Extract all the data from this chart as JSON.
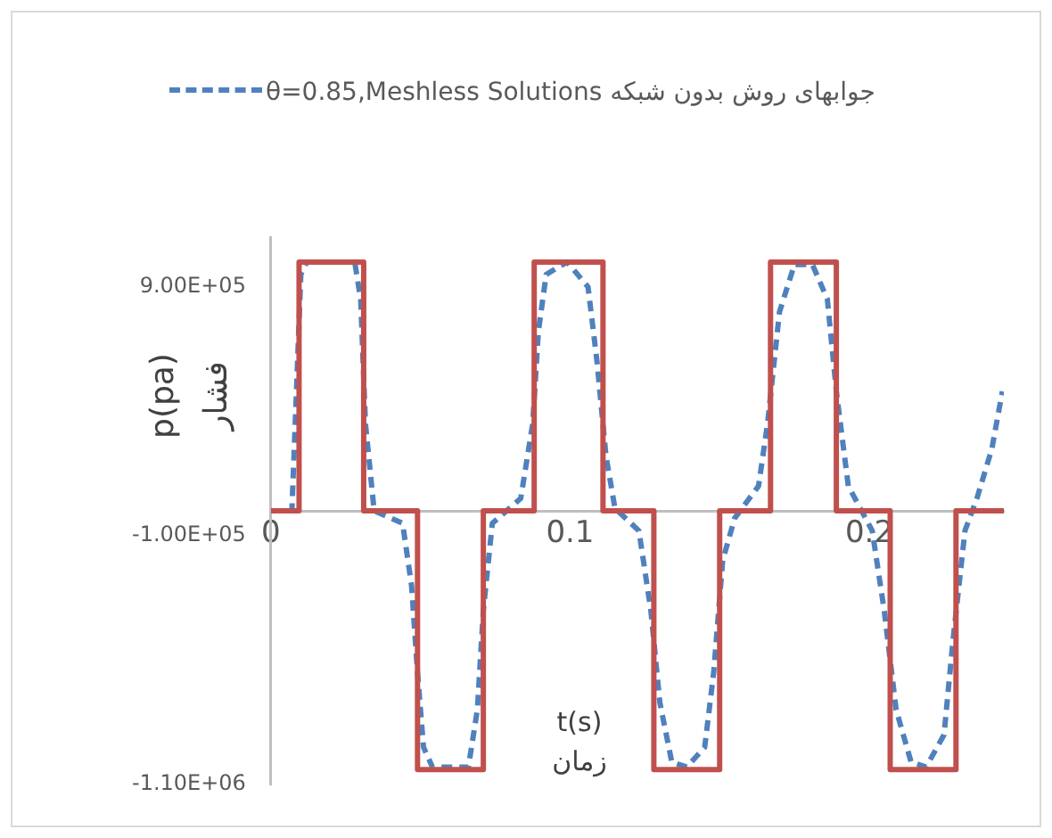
{
  "chart_data": {
    "type": "line",
    "xlabel": "t(s)\nزمان",
    "ylabel": "p(pa)\nفشار",
    "legend": "top",
    "grid": false,
    "marker": "none",
    "xlim": [
      0,
      0.245
    ],
    "xticks": [
      0,
      0.1,
      0.2
    ],
    "ylim": [
      -1100000,
      1100000
    ],
    "yticks": [
      {
        "value": 900000,
        "label": "9.00E+05"
      },
      {
        "value": -100000,
        "label": "-1.00E+05"
      },
      {
        "value": -1100000,
        "label": "-1.10E+06"
      }
    ],
    "series": [
      {
        "type": "step",
        "color": "#c0504d",
        "x": [
          0,
          0.0094,
          0.031,
          0.049,
          0.071,
          0.088,
          0.111,
          0.128,
          0.15,
          0.167,
          0.189,
          0.207,
          0.229,
          0.245
        ],
        "values": [
          0,
          1000000,
          0,
          -1040000,
          0,
          1000000,
          0,
          -1040000,
          0,
          1000000,
          0,
          -1040000,
          0,
          0
        ]
      },
      {
        "type": "line",
        "name": "θ=0.85,Meshless Solutions جوابهای روش بدون شبکه",
        "color": "#4f81bd",
        "line_style": "dashed",
        "x": [
          0,
          0.007,
          0.01,
          0.012,
          0.028,
          0.03,
          0.0316,
          0.0345,
          0.044,
          0.047,
          0.049,
          0.051,
          0.054,
          0.066,
          0.069,
          0.071,
          0.074,
          0.0835,
          0.0875,
          0.0894,
          0.092,
          0.099,
          0.106,
          0.109,
          0.112,
          0.115,
          0.123,
          0.127,
          0.13,
          0.134,
          0.139,
          0.145,
          0.148,
          0.151,
          0.155,
          0.163,
          0.166,
          0.17,
          0.175,
          0.181,
          0.186,
          0.189,
          0.193,
          0.201,
          0.205,
          0.209,
          0.214,
          0.219,
          0.225,
          0.228,
          0.232,
          0.236,
          0.241,
          0.2445
        ],
        "values": [
          0,
          0,
          950000,
          1000000,
          1000000,
          850000,
          350000,
          0,
          -50000,
          -300000,
          -650000,
          -950000,
          -1030000,
          -1030000,
          -800000,
          -400000,
          -50000,
          50000,
          350000,
          720000,
          950000,
          1000000,
          900000,
          600000,
          220000,
          10000,
          -80000,
          -400000,
          -770000,
          -1010000,
          -1030000,
          -950000,
          -650000,
          -200000,
          -30000,
          100000,
          350000,
          800000,
          990000,
          990000,
          850000,
          480000,
          100000,
          -80000,
          -400000,
          -800000,
          -1010000,
          -1030000,
          -900000,
          -520000,
          -80000,
          50000,
          250000,
          480000
        ]
      }
    ]
  }
}
